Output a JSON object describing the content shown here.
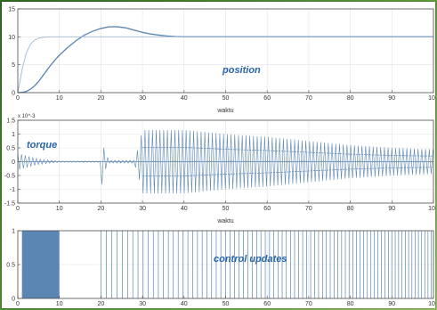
{
  "colors": {
    "line": "#5b86b4",
    "line_light": "#9db8d6",
    "fill": "#5b86b4",
    "text": "#2a64a8",
    "frame": "#4d4d4d",
    "grid": "#e2e2e2"
  },
  "chart_data": [
    {
      "type": "line",
      "title": "",
      "xlabel": "waktu",
      "ylabel": "",
      "xlim": [
        0,
        100
      ],
      "ylim": [
        0,
        15
      ],
      "xticks": [
        "0",
        "10",
        "20",
        "30",
        "40",
        "50",
        "60",
        "70",
        "80",
        "90",
        "100"
      ],
      "yticks": [
        "0",
        "5",
        "10",
        "15"
      ],
      "annotation": "position",
      "grid": true,
      "series": [
        {
          "x": [
            0,
            1,
            2,
            3,
            4,
            5,
            6,
            7,
            8,
            9,
            10,
            12,
            14,
            16,
            18,
            20,
            22,
            24,
            26,
            28,
            30,
            32,
            34,
            36,
            38,
            40,
            45,
            50,
            60,
            70,
            80,
            90,
            100
          ],
          "values": [
            0,
            0.05,
            0.2,
            0.6,
            1.2,
            2,
            3,
            4,
            5,
            5.9,
            6.7,
            8.1,
            9.3,
            10.3,
            11.0,
            11.5,
            11.8,
            11.8,
            11.6,
            11.2,
            10.8,
            10.5,
            10.3,
            10.15,
            10.05,
            10,
            10,
            10,
            10,
            10,
            10,
            10,
            10
          ]
        },
        {
          "x": [
            0,
            1,
            2,
            3,
            4,
            5,
            6,
            7,
            8,
            10,
            12,
            14,
            100
          ],
          "values": [
            0,
            4,
            7,
            8.6,
            9.4,
            9.75,
            9.9,
            9.95,
            10,
            10,
            10,
            10,
            10
          ]
        }
      ]
    },
    {
      "type": "line",
      "title": "",
      "xlabel": "waktu",
      "ylabel": "",
      "xlim": [
        0,
        100
      ],
      "ylim": [
        -1.5,
        1.5
      ],
      "xticks": [
        "0",
        "10",
        "20",
        "30",
        "40",
        "50",
        "60",
        "70",
        "80",
        "90",
        "100"
      ],
      "yticks": [
        "-1.5",
        "-1",
        "-0.5",
        "0",
        "0.5",
        "1",
        "1.5"
      ],
      "y_exponent": "x 10^-3",
      "annotation": "torque",
      "grid": true,
      "series": [
        {
          "description_values": "oscillation envelope amplitude over time",
          "x": [
            0,
            5,
            10,
            19.9,
            20,
            21,
            22,
            28,
            29,
            30,
            40,
            50,
            60,
            70,
            80,
            90,
            100
          ],
          "values": [
            0.3,
            0.1,
            0.02,
            0.02,
            1,
            0.3,
            0.05,
            0.05,
            0.5,
            1.15,
            1.15,
            1.0,
            0.9,
            0.75,
            0.6,
            0.5,
            0.45
          ]
        }
      ]
    },
    {
      "type": "line",
      "title": "",
      "xlabel": "",
      "ylabel": "",
      "xlim": [
        0,
        100
      ],
      "ylim": [
        0,
        1
      ],
      "xticks": [
        "0",
        "10",
        "20",
        "30",
        "40",
        "50",
        "60",
        "70",
        "80",
        "90",
        "100"
      ],
      "yticks": [
        "0",
        "0.5",
        "1"
      ],
      "annotation": "control updates",
      "grid": true,
      "series": [
        {
          "dense_band": [
            1,
            10
          ],
          "update_interval_start": 1.3,
          "update_interval_end": 0.75,
          "update_start": 20,
          "update_end": 100
        }
      ]
    }
  ]
}
